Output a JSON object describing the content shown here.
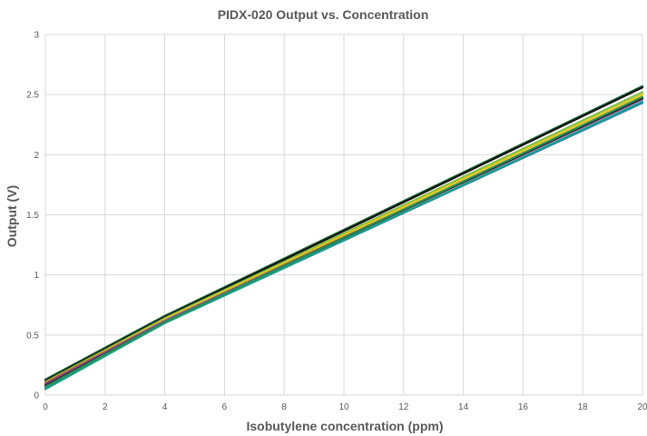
{
  "chart_data": {
    "type": "line",
    "title": "PIDX-020 Output vs. Concentration",
    "xlabel": "Isobutylene concentration (ppm)",
    "ylabel": "Output (V)",
    "xlim": [
      0,
      20
    ],
    "ylim": [
      0,
      3
    ],
    "x_ticks": [
      "0",
      "2",
      "4",
      "6",
      "8",
      "10",
      "12",
      "14",
      "16",
      "18",
      "20"
    ],
    "y_ticks": [
      "0",
      "0.5",
      "1",
      "1.5",
      "2",
      "2.5",
      "3"
    ],
    "grid": true,
    "legend": false,
    "x": [
      0,
      4,
      20
    ],
    "series": [
      {
        "color": "#1f6b3a",
        "values": [
          0.13,
          0.66,
          2.57
        ]
      },
      {
        "color": "#111111",
        "values": [
          0.12,
          0.65,
          2.56
        ]
      },
      {
        "color": "#7fbf3f",
        "values": [
          0.11,
          0.64,
          2.52
        ]
      },
      {
        "color": "#e6c619",
        "values": [
          0.1,
          0.63,
          2.5
        ]
      },
      {
        "color": "#c0392b",
        "values": [
          0.1,
          0.62,
          2.47
        ]
      },
      {
        "color": "#9b59b6",
        "values": [
          0.09,
          0.62,
          2.46
        ]
      },
      {
        "color": "#1a1a1a",
        "values": [
          0.08,
          0.61,
          2.47
        ]
      },
      {
        "color": "#3a78c8",
        "values": [
          0.06,
          0.6,
          2.43
        ]
      },
      {
        "color": "#16a085",
        "values": [
          0.05,
          0.6,
          2.44
        ]
      },
      {
        "color": "#2e8b57",
        "values": [
          0.07,
          0.61,
          2.48
        ]
      }
    ]
  }
}
